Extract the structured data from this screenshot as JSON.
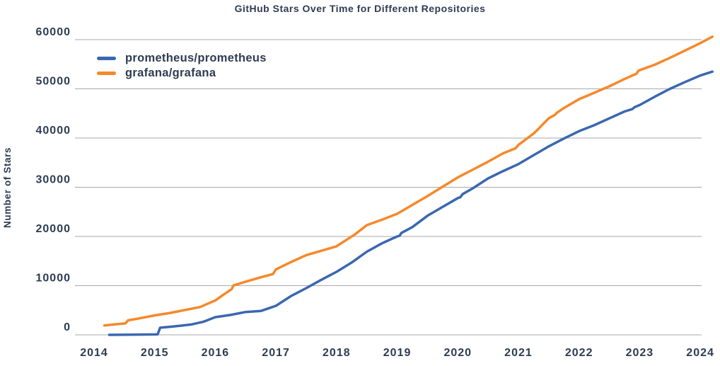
{
  "title": "GitHub Stars Over Time for Different Repositories",
  "y_axis_label": "Number of Stars",
  "colors": {
    "text": "#2e3c52",
    "grid": "#a9a9a9",
    "background": "#ffffff",
    "prometheus_blue": "#3b67b0",
    "grafana_orange": "#f6882a"
  },
  "chart_data": {
    "type": "line",
    "title": "GitHub Stars Over Time for Different Repositories",
    "xlabel": "",
    "ylabel": "Number of Stars",
    "grid": true,
    "legend_position": "upper left",
    "xlim": [
      2013.69,
      2024.35
    ],
    "ylim": [
      0,
      60000
    ],
    "x_ticks": [
      2014,
      2015,
      2016,
      2017,
      2018,
      2019,
      2020,
      2021,
      2022,
      2023,
      2024
    ],
    "x_tick_labels": [
      "2014",
      "2015",
      "2016",
      "2017",
      "2018",
      "2019",
      "2020",
      "2021",
      "2022",
      "2023",
      "2024"
    ],
    "y_ticks": [
      0,
      10000,
      20000,
      30000,
      40000,
      50000,
      60000
    ],
    "y_tick_labels": [
      "0",
      "10000",
      "20000",
      "30000",
      "40000",
      "50000",
      "60000"
    ],
    "series": [
      {
        "name": "prometheus/prometheus",
        "color": "#3b67b0",
        "points": [
          [
            2014.25,
            0
          ],
          [
            2014.6,
            30
          ],
          [
            2015.0,
            80
          ],
          [
            2015.05,
            110
          ],
          [
            2015.09,
            1450
          ],
          [
            2015.3,
            1680
          ],
          [
            2015.6,
            2100
          ],
          [
            2015.8,
            2650
          ],
          [
            2016.0,
            3600
          ],
          [
            2016.25,
            4050
          ],
          [
            2016.5,
            4650
          ],
          [
            2016.75,
            4850
          ],
          [
            2017.0,
            5900
          ],
          [
            2017.25,
            7900
          ],
          [
            2017.5,
            9500
          ],
          [
            2017.75,
            11200
          ],
          [
            2018.0,
            12800
          ],
          [
            2018.25,
            14700
          ],
          [
            2018.5,
            16900
          ],
          [
            2018.75,
            18600
          ],
          [
            2019.0,
            20000
          ],
          [
            2019.04,
            20150
          ],
          [
            2019.07,
            20700
          ],
          [
            2019.25,
            21900
          ],
          [
            2019.5,
            24200
          ],
          [
            2019.75,
            26000
          ],
          [
            2020.0,
            27800
          ],
          [
            2020.04,
            27950
          ],
          [
            2020.08,
            28600
          ],
          [
            2020.25,
            29800
          ],
          [
            2020.5,
            31800
          ],
          [
            2020.75,
            33300
          ],
          [
            2021.0,
            34700
          ],
          [
            2021.25,
            36500
          ],
          [
            2021.5,
            38300
          ],
          [
            2021.75,
            39900
          ],
          [
            2022.0,
            41400
          ],
          [
            2022.25,
            42600
          ],
          [
            2022.5,
            44000
          ],
          [
            2022.75,
            45400
          ],
          [
            2022.88,
            45900
          ],
          [
            2022.92,
            46300
          ],
          [
            2023.0,
            46700
          ],
          [
            2023.25,
            48400
          ],
          [
            2023.5,
            50000
          ],
          [
            2023.75,
            51400
          ],
          [
            2024.0,
            52700
          ],
          [
            2024.2,
            53500
          ]
        ]
      },
      {
        "name": "grafana/grafana",
        "color": "#f6882a",
        "points": [
          [
            2014.17,
            1900
          ],
          [
            2014.35,
            2150
          ],
          [
            2014.52,
            2350
          ],
          [
            2014.56,
            2950
          ],
          [
            2014.75,
            3350
          ],
          [
            2015.0,
            3950
          ],
          [
            2015.25,
            4450
          ],
          [
            2015.5,
            5050
          ],
          [
            2015.75,
            5650
          ],
          [
            2016.0,
            7000
          ],
          [
            2016.15,
            8300
          ],
          [
            2016.27,
            9300
          ],
          [
            2016.3,
            10050
          ],
          [
            2016.5,
            10800
          ],
          [
            2016.75,
            11700
          ],
          [
            2016.95,
            12350
          ],
          [
            2016.98,
            12900
          ],
          [
            2017.0,
            13300
          ],
          [
            2017.25,
            14800
          ],
          [
            2017.5,
            16200
          ],
          [
            2017.75,
            17100
          ],
          [
            2018.0,
            18000
          ],
          [
            2018.3,
            20400
          ],
          [
            2018.5,
            22300
          ],
          [
            2018.75,
            23400
          ],
          [
            2019.0,
            24600
          ],
          [
            2019.25,
            26400
          ],
          [
            2019.5,
            28200
          ],
          [
            2019.75,
            30100
          ],
          [
            2020.0,
            32000
          ],
          [
            2020.25,
            33600
          ],
          [
            2020.5,
            35200
          ],
          [
            2020.75,
            36900
          ],
          [
            2020.95,
            37900
          ],
          [
            2020.98,
            38300
          ],
          [
            2021.0,
            38600
          ],
          [
            2021.25,
            40900
          ],
          [
            2021.3,
            41500
          ],
          [
            2021.5,
            44000
          ],
          [
            2021.6,
            44700
          ],
          [
            2021.63,
            45100
          ],
          [
            2021.75,
            46100
          ],
          [
            2022.0,
            47900
          ],
          [
            2022.25,
            49200
          ],
          [
            2022.4,
            50000
          ],
          [
            2022.5,
            50500
          ],
          [
            2022.75,
            52000
          ],
          [
            2022.95,
            53100
          ],
          [
            2022.98,
            53700
          ],
          [
            2023.25,
            54900
          ],
          [
            2023.5,
            56300
          ],
          [
            2023.75,
            57800
          ],
          [
            2024.0,
            59300
          ],
          [
            2024.2,
            60600
          ]
        ]
      }
    ]
  }
}
